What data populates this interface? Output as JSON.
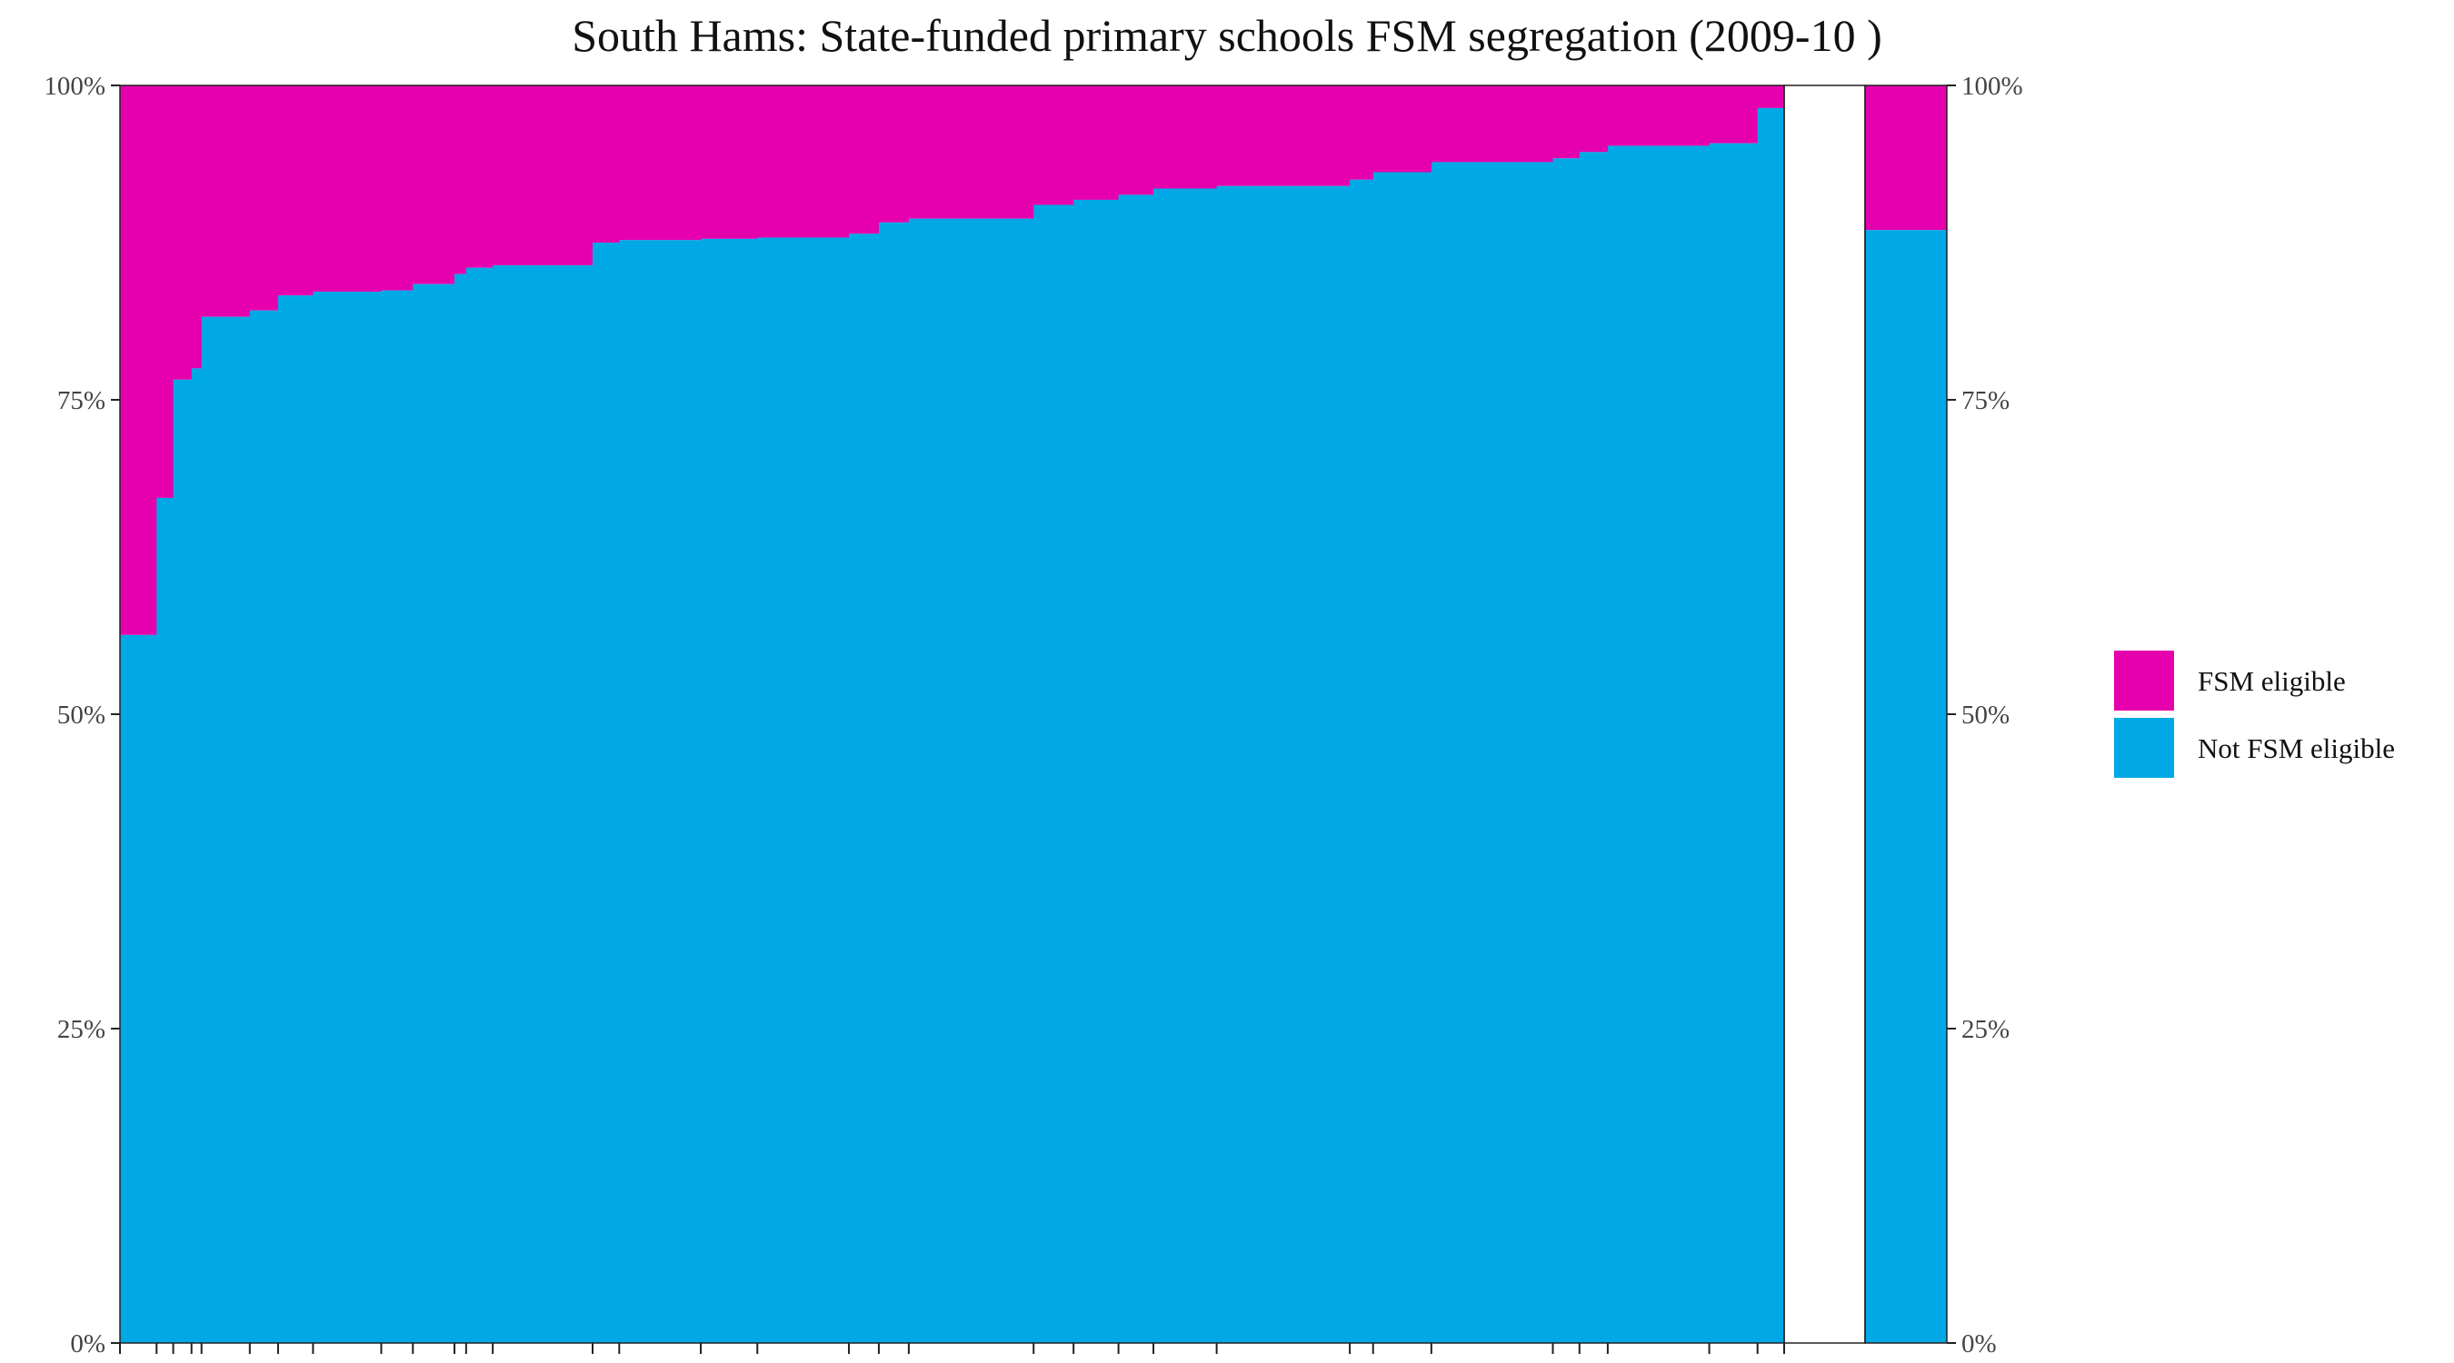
{
  "chart_data": {
    "type": "bar",
    "stacked": true,
    "variable_width": true,
    "title": "South Hams: State-funded primary schools FSM segregation (2009-10 )",
    "xlabel": "",
    "ylabel": "",
    "ylim": [
      0,
      100
    ],
    "y_tick_labels": [
      "0%",
      "25%",
      "50%",
      "75%",
      "100%"
    ],
    "grid": false,
    "legend_position": "right",
    "colors": {
      "fsm": "#E600AD",
      "not_fsm": "#00A8E6"
    },
    "legend": [
      {
        "key": "fsm",
        "label": "FSM eligible"
      },
      {
        "key": "not_fsm",
        "label": "Not FSM eligible"
      }
    ],
    "schools": [
      {
        "cum_start": 0.0,
        "cum_end": 2.2,
        "not_fsm_pct": 56.3
      },
      {
        "cum_start": 2.2,
        "cum_end": 3.2,
        "not_fsm_pct": 67.2
      },
      {
        "cum_start": 3.2,
        "cum_end": 4.3,
        "not_fsm_pct": 76.6
      },
      {
        "cum_start": 4.3,
        "cum_end": 4.9,
        "not_fsm_pct": 77.5
      },
      {
        "cum_start": 4.9,
        "cum_end": 7.8,
        "not_fsm_pct": 81.6
      },
      {
        "cum_start": 7.8,
        "cum_end": 9.5,
        "not_fsm_pct": 82.1
      },
      {
        "cum_start": 9.5,
        "cum_end": 11.6,
        "not_fsm_pct": 83.3
      },
      {
        "cum_start": 11.6,
        "cum_end": 15.7,
        "not_fsm_pct": 83.6
      },
      {
        "cum_start": 15.7,
        "cum_end": 17.6,
        "not_fsm_pct": 83.7
      },
      {
        "cum_start": 17.6,
        "cum_end": 20.1,
        "not_fsm_pct": 84.2
      },
      {
        "cum_start": 20.1,
        "cum_end": 20.8,
        "not_fsm_pct": 85.0
      },
      {
        "cum_start": 20.8,
        "cum_end": 22.4,
        "not_fsm_pct": 85.5
      },
      {
        "cum_start": 22.4,
        "cum_end": 28.4,
        "not_fsm_pct": 85.7
      },
      {
        "cum_start": 28.4,
        "cum_end": 30.0,
        "not_fsm_pct": 87.5
      },
      {
        "cum_start": 30.0,
        "cum_end": 34.9,
        "not_fsm_pct": 87.7
      },
      {
        "cum_start": 34.9,
        "cum_end": 38.3,
        "not_fsm_pct": 87.8
      },
      {
        "cum_start": 38.3,
        "cum_end": 43.8,
        "not_fsm_pct": 87.9
      },
      {
        "cum_start": 43.8,
        "cum_end": 45.6,
        "not_fsm_pct": 88.2
      },
      {
        "cum_start": 45.6,
        "cum_end": 47.4,
        "not_fsm_pct": 89.1
      },
      {
        "cum_start": 47.4,
        "cum_end": 54.9,
        "not_fsm_pct": 89.4
      },
      {
        "cum_start": 54.9,
        "cum_end": 57.3,
        "not_fsm_pct": 90.5
      },
      {
        "cum_start": 57.3,
        "cum_end": 60.0,
        "not_fsm_pct": 90.9
      },
      {
        "cum_start": 60.0,
        "cum_end": 62.1,
        "not_fsm_pct": 91.3
      },
      {
        "cum_start": 62.1,
        "cum_end": 65.9,
        "not_fsm_pct": 91.8
      },
      {
        "cum_start": 65.9,
        "cum_end": 73.9,
        "not_fsm_pct": 92.0
      },
      {
        "cum_start": 73.9,
        "cum_end": 75.3,
        "not_fsm_pct": 92.5
      },
      {
        "cum_start": 75.3,
        "cum_end": 78.8,
        "not_fsm_pct": 93.1
      },
      {
        "cum_start": 78.8,
        "cum_end": 86.1,
        "not_fsm_pct": 93.9
      },
      {
        "cum_start": 86.1,
        "cum_end": 87.7,
        "not_fsm_pct": 94.2
      },
      {
        "cum_start": 87.7,
        "cum_end": 89.4,
        "not_fsm_pct": 94.7
      },
      {
        "cum_start": 89.4,
        "cum_end": 95.5,
        "not_fsm_pct": 95.2
      },
      {
        "cum_start": 95.5,
        "cum_end": 98.4,
        "not_fsm_pct": 95.4
      },
      {
        "cum_start": 98.4,
        "cum_end": 100.0,
        "not_fsm_pct": 98.2
      }
    ],
    "overall": {
      "not_fsm_pct": 88.5
    }
  }
}
